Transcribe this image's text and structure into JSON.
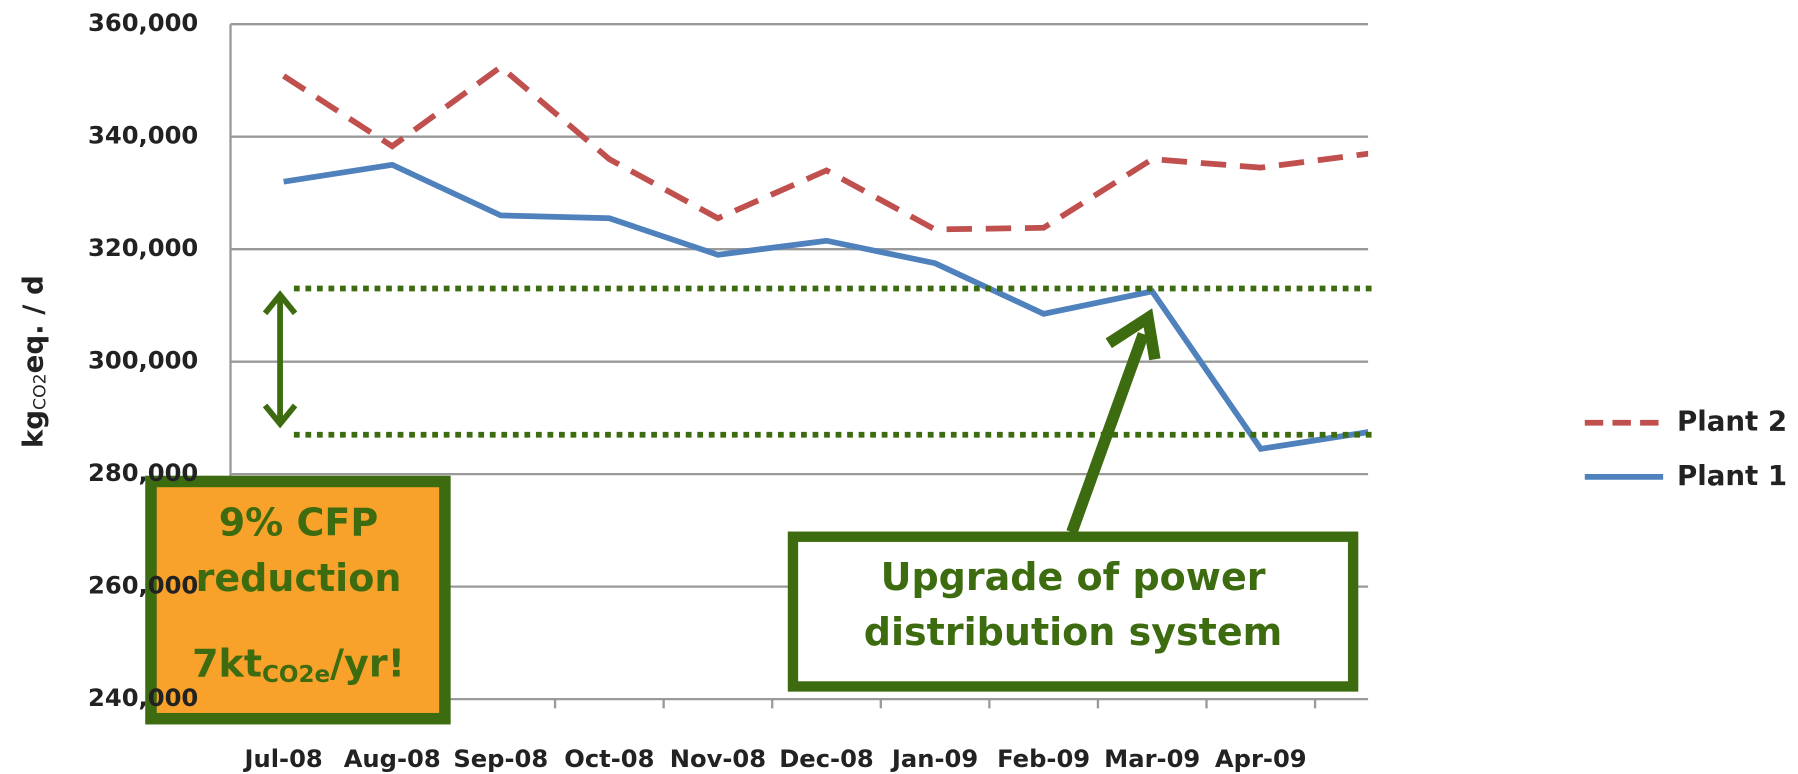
{
  "chart_data": {
    "type": "line",
    "y_label": {
      "main": "kg",
      "sub": "CO2",
      "rest": "eq. / d"
    },
    "categories": [
      "Jul-08",
      "Aug-08",
      "Sep-08",
      "Oct-08",
      "Nov-08",
      "Dec-08",
      "Jan-09",
      "Feb-09",
      "Mar-09",
      "Apr-09",
      null
    ],
    "series": [
      {
        "name": "Plant 2",
        "color": "#c0504d",
        "dashed": true,
        "values": [
          350800,
          338300,
          352400,
          336000,
          325500,
          334000,
          323500,
          323800,
          336000,
          334500,
          337000
        ]
      },
      {
        "name": "Plant 1",
        "color": "#4f81bd",
        "dashed": false,
        "values": [
          332000,
          335000,
          326000,
          325500,
          319000,
          321500,
          317500,
          308500,
          312500,
          284500,
          287500
        ]
      }
    ],
    "ylim": [
      240000,
      360000
    ],
    "yticks": [
      {
        "value": 240000,
        "label": "240,000"
      },
      {
        "value": 260000,
        "label": "260,000"
      },
      {
        "value": 280000,
        "label": "280,000"
      },
      {
        "value": 300000,
        "label": "300,000"
      },
      {
        "value": 320000,
        "label": "320,000"
      },
      {
        "value": 340000,
        "label": "340,000"
      },
      {
        "value": 360000,
        "label": "360,000"
      }
    ],
    "grid": true,
    "reference_lines": [
      313000,
      287000
    ],
    "annotations": {
      "reduction_box": {
        "line1": "9% CFP",
        "line2": "reduction",
        "amount": "7kt",
        "amount_sub": "CO2e",
        "amount_rest": "/yr!"
      },
      "callout": {
        "line1": "Upgrade of power",
        "line2": "distribution system"
      }
    }
  }
}
